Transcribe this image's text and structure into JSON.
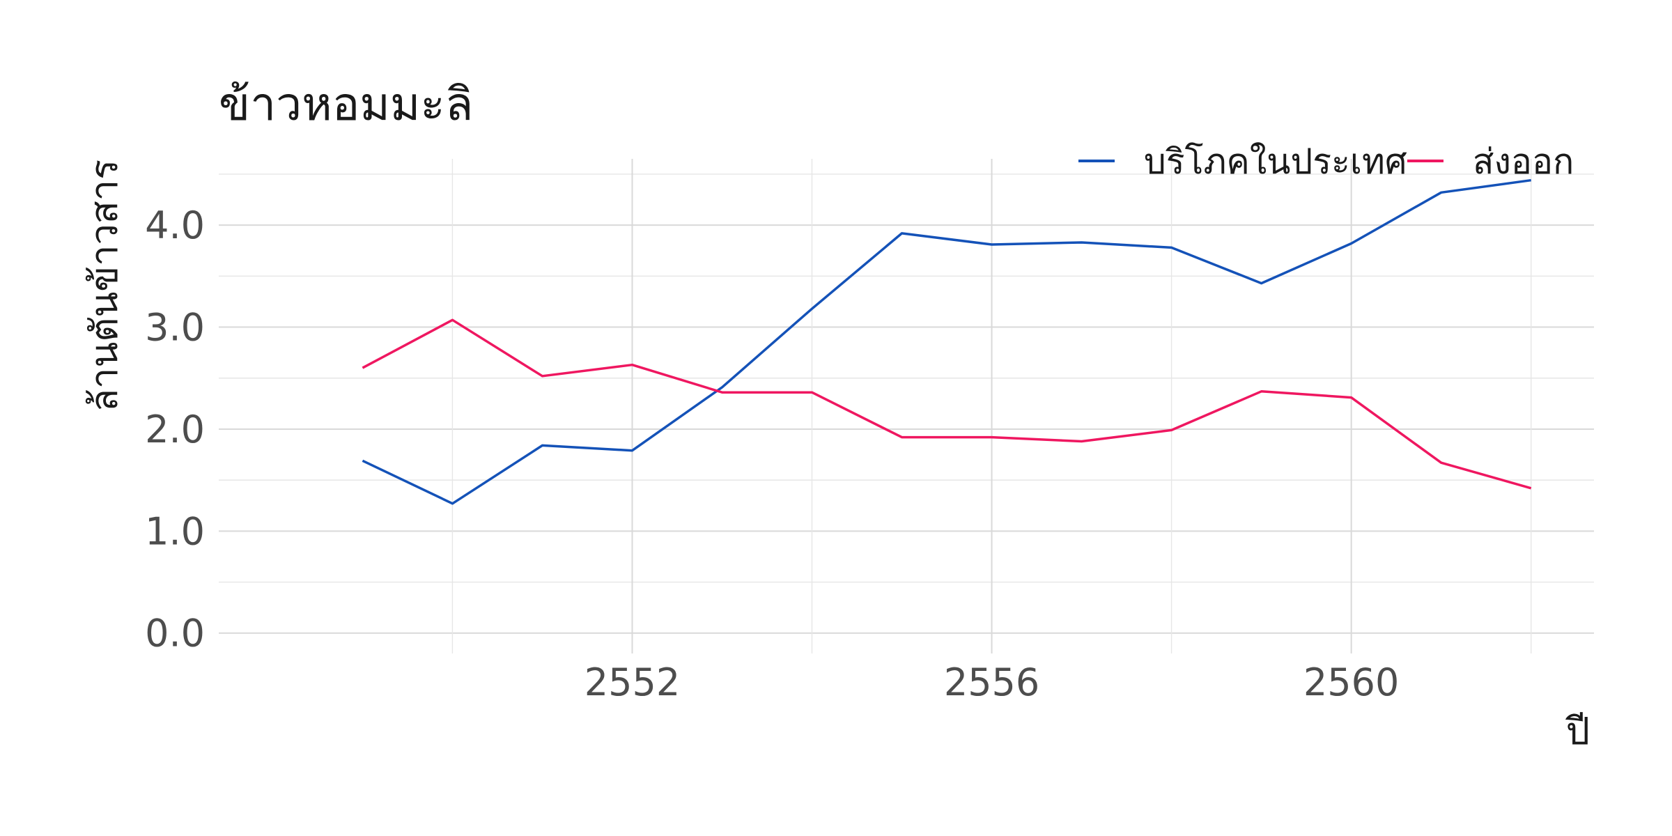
{
  "chart_data": {
    "type": "line",
    "title": "ข้าวหอมมะลิ",
    "xlabel": "ปี",
    "ylabel": "ล้านตันข้าวสาร",
    "x": [
      2549,
      2550,
      2551,
      2552,
      2553,
      2554,
      2555,
      2556,
      2557,
      2558,
      2559,
      2560,
      2561,
      2562
    ],
    "xlim": [
      2547.4,
      2562.7
    ],
    "ylim": [
      -0.2,
      4.65
    ],
    "x_ticks": [
      "2552",
      "2556",
      "2560"
    ],
    "y_ticks": [
      "0.0",
      "1.0",
      "2.0",
      "3.0",
      "4.0"
    ],
    "grid": true,
    "legend_position": "top-right",
    "series": [
      {
        "name": "บริโภคในประเทศ",
        "color": "#1452b8",
        "values": [
          1.69,
          1.27,
          1.84,
          1.79,
          2.41,
          3.18,
          3.92,
          3.81,
          3.83,
          3.78,
          3.43,
          3.82,
          4.32,
          4.44
        ]
      },
      {
        "name": "ส่งออก",
        "color": "#ef1760",
        "values": [
          2.6,
          3.07,
          2.52,
          2.63,
          2.36,
          2.36,
          1.92,
          1.92,
          1.88,
          1.99,
          2.37,
          2.31,
          1.67,
          1.42
        ]
      }
    ]
  }
}
